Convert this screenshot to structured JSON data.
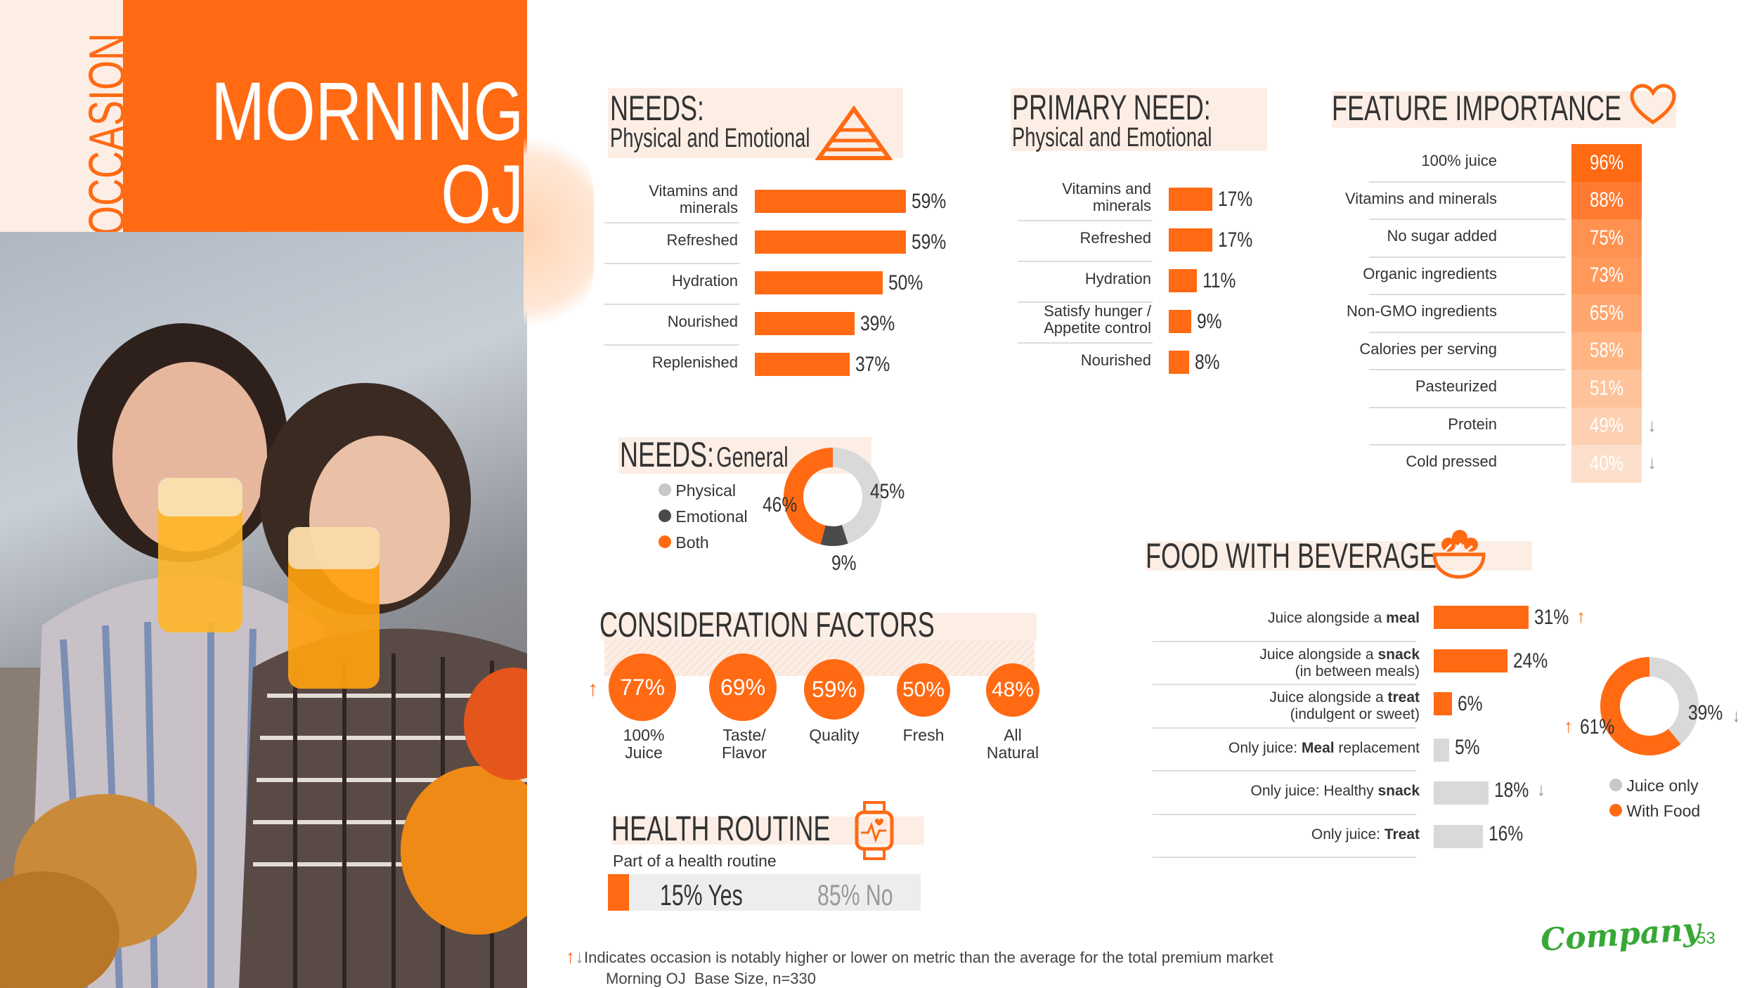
{
  "header": {
    "side_label": "OCCASION",
    "title_line1": "MORNING",
    "title_line2": "OJ"
  },
  "needs_physical": {
    "title": "NEEDS:",
    "subtitle": "Physical and Emotional",
    "items": [
      {
        "label_line1": "Vitamins and",
        "label_line2": "minerals",
        "value": "59%",
        "pct": 59
      },
      {
        "label_line1": "Refreshed",
        "label_line2": "",
        "value": "59%",
        "pct": 59
      },
      {
        "label_line1": "Hydration",
        "label_line2": "",
        "value": "50%",
        "pct": 50
      },
      {
        "label_line1": "Nourished",
        "label_line2": "",
        "value": "39%",
        "pct": 39
      },
      {
        "label_line1": "Replenished",
        "label_line2": "",
        "value": "37%",
        "pct": 37
      }
    ]
  },
  "primary_need": {
    "title": "PRIMARY NEED:",
    "subtitle": "Physical and Emotional",
    "items": [
      {
        "label_line1": "Vitamins and",
        "label_line2": "minerals",
        "value": "17%",
        "pct": 17
      },
      {
        "label_line1": "Refreshed",
        "label_line2": "",
        "value": "17%",
        "pct": 17
      },
      {
        "label_line1": "Hydration",
        "label_line2": "",
        "value": "11%",
        "pct": 11
      },
      {
        "label_line1": "Satisfy hunger /",
        "label_line2": "Appetite control",
        "value": "9%",
        "pct": 9
      },
      {
        "label_line1": "Nourished",
        "label_line2": "",
        "value": "8%",
        "pct": 8
      }
    ]
  },
  "feature_importance": {
    "title": "FEATURE IMPORTANCE",
    "items": [
      {
        "label": "100% juice",
        "value": "96%",
        "color": "#ff6a13",
        "arrow": ""
      },
      {
        "label": "Vitamins and minerals",
        "value": "88%",
        "color": "#ff7a30",
        "arrow": ""
      },
      {
        "label": "No sugar added",
        "value": "75%",
        "color": "#ff9250",
        "arrow": ""
      },
      {
        "label": "Organic ingredients",
        "value": "73%",
        "color": "#ff9a5c",
        "arrow": ""
      },
      {
        "label": "Non-GMO ingredients",
        "value": "65%",
        "color": "#ffa66e",
        "arrow": ""
      },
      {
        "label": "Calories per serving",
        "value": "58%",
        "color": "#ffb482",
        "arrow": ""
      },
      {
        "label": "Pasteurized",
        "value": "51%",
        "color": "#ffc39b",
        "arrow": ""
      },
      {
        "label": "Protein",
        "value": "49%",
        "color": "#fdd0b1",
        "arrow": "↓"
      },
      {
        "label": "Cold pressed",
        "value": "40%",
        "color": "#fde0cb",
        "arrow": "↓"
      }
    ]
  },
  "needs_general": {
    "title": "NEEDS:",
    "subtitle": "General",
    "legend": [
      {
        "label": "Physical",
        "color": "#c8c8c8"
      },
      {
        "label": "Emotional",
        "color": "#4a4a4a"
      },
      {
        "label": "Both",
        "color": "#ff6a13"
      }
    ],
    "values": {
      "physical": "45%",
      "emotional": "9%",
      "both": "46%"
    },
    "chart_data": {
      "type": "pie",
      "categories": [
        "Physical",
        "Emotional",
        "Both"
      ],
      "values": [
        45,
        9,
        46
      ]
    }
  },
  "consideration": {
    "title": "CONSIDERATION FACTORS",
    "items": [
      {
        "value": "77%",
        "label_line1": "100%",
        "label_line2": "Juice",
        "arrow": "↑"
      },
      {
        "value": "69%",
        "label_line1": "Taste/",
        "label_line2": "Flavor",
        "arrow": ""
      },
      {
        "value": "59%",
        "label_line1": "Quality",
        "label_line2": "",
        "arrow": ""
      },
      {
        "value": "50%",
        "label_line1": "Fresh",
        "label_line2": "",
        "arrow": ""
      },
      {
        "value": "48%",
        "label_line1": "All",
        "label_line2": "Natural",
        "arrow": ""
      }
    ]
  },
  "health_routine": {
    "title": "HEALTH ROUTINE",
    "subtitle": "Part of a health routine",
    "yes": "15% Yes",
    "no": "85% No",
    "yes_pct": 15
  },
  "food_with_beverage": {
    "title": "FOOD WITH BEVERAGE",
    "items": [
      {
        "pre1": "Juice alongside a ",
        "bold1": "meal",
        "line2": "",
        "value": "31%",
        "pct": 31,
        "color": "#ff6a13",
        "arrow": "↑"
      },
      {
        "pre1": "Juice alongside a ",
        "bold1": "snack",
        "line2": "(in between meals)",
        "value": "24%",
        "pct": 24,
        "color": "#ff6a13",
        "arrow": ""
      },
      {
        "pre1": "Juice alongside a ",
        "bold1": "treat",
        "line2": "(indulgent or sweet)",
        "value": "6%",
        "pct": 6,
        "color": "#ff6a13",
        "arrow": ""
      },
      {
        "pre1": "Only juice: ",
        "bold1": "Meal",
        "post1": " replacement",
        "line2": "",
        "value": "5%",
        "pct": 5,
        "color": "#d9d9d9",
        "arrow": ""
      },
      {
        "pre1": "Only juice: Healthy ",
        "bold1": "snack",
        "line2": "",
        "value": "18%",
        "pct": 18,
        "color": "#d9d9d9",
        "arrow": "↓"
      },
      {
        "pre1": "Only juice: ",
        "bold1": "Treat",
        "line2": "",
        "value": "16%",
        "pct": 16,
        "color": "#d9d9d9",
        "arrow": ""
      }
    ],
    "donut": {
      "legend": [
        {
          "label": "Juice only",
          "color": "#c8c8c8"
        },
        {
          "label": "With Food",
          "color": "#ff6a13"
        }
      ],
      "with_food": "61%",
      "juice_only": "39%",
      "chart_data": {
        "type": "pie",
        "categories": [
          "With Food",
          "Juice only"
        ],
        "values": [
          61,
          39
        ]
      }
    }
  },
  "footer": {
    "note": "Indicates occasion is notably higher or lower on metric than the average for the total premium market",
    "base": "Morning OJ  Base Size, n=330",
    "brand": "Company",
    "page": "53"
  }
}
